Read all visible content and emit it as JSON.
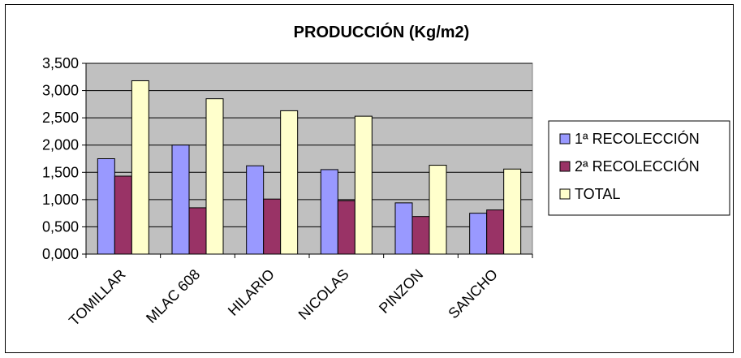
{
  "chart_data": {
    "type": "bar",
    "title": "PRODUCCIÓN (Kg/m2)",
    "xlabel": "",
    "ylabel": "",
    "categories": [
      "TOMILLAR",
      "MLAC 608",
      "HILARIO",
      "NICOLAS",
      "PINZON",
      "SANCHO"
    ],
    "series": [
      {
        "name": "1ª RECOLECCIÓN",
        "color": "#9999ff",
        "values": [
          1.75,
          2.0,
          1.62,
          1.55,
          0.94,
          0.75
        ]
      },
      {
        "name": "2ª RECOLECCIÓN",
        "color": "#993366",
        "values": [
          1.43,
          0.85,
          1.01,
          0.98,
          0.69,
          0.81
        ]
      },
      {
        "name": "TOTAL",
        "color": "#ffffcc",
        "values": [
          3.18,
          2.85,
          2.63,
          2.53,
          1.63,
          1.56
        ]
      }
    ],
    "ylim": [
      0,
      3.5
    ],
    "yticks": [
      "0,000",
      "0,500",
      "1,000",
      "1,500",
      "2,000",
      "2,500",
      "3,000",
      "3,500"
    ],
    "grid": true,
    "plot_background": "#c0c0c0",
    "legend_position": "right"
  }
}
